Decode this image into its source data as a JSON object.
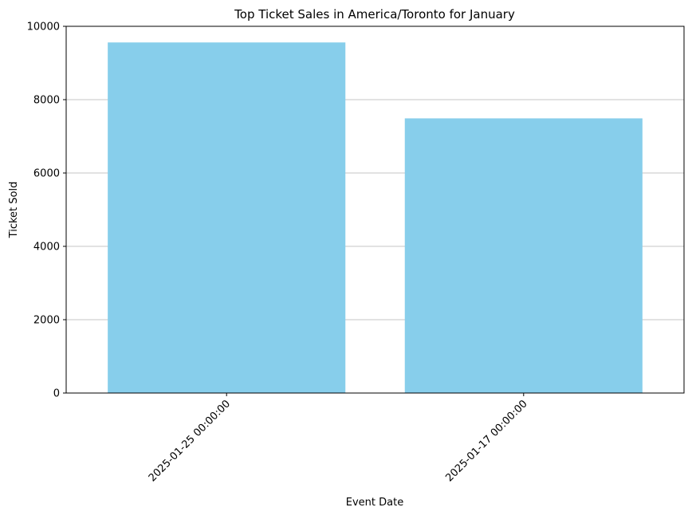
{
  "chart_data": {
    "type": "bar",
    "title": "Top Ticket Sales in America/Toronto for January",
    "xlabel": "Event Date",
    "ylabel": "Ticket Sold",
    "categories": [
      "2025-01-25 00:00:00",
      "2025-01-17 00:00:00"
    ],
    "values": [
      9560,
      7490
    ],
    "ylim": [
      0,
      10000
    ],
    "yticks": [
      0,
      2000,
      4000,
      6000,
      8000,
      10000
    ],
    "ytick_labels": [
      "0",
      "2000",
      "4000",
      "6000",
      "8000",
      "10000"
    ],
    "grid": "y-axis",
    "bar_color": "#87ceeb",
    "grid_color": "#b0b0b0"
  }
}
